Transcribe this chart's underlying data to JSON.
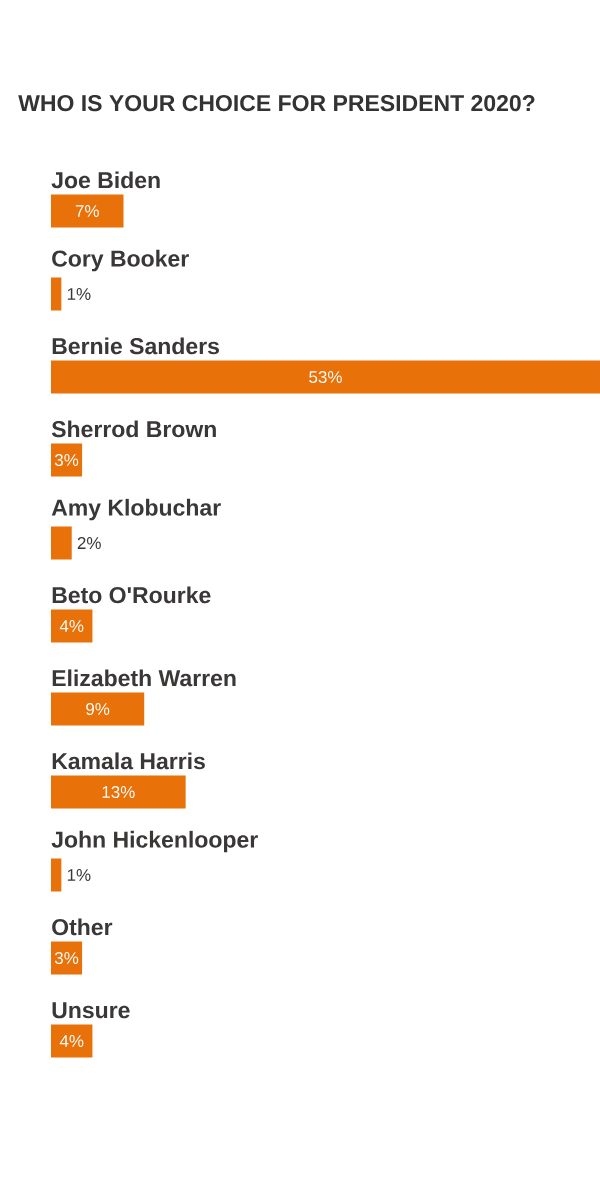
{
  "chart_data": {
    "type": "bar",
    "orientation": "horizontal",
    "title": "WHO IS YOUR CHOICE FOR PRESIDENT 2020?",
    "categories": [
      "Joe Biden",
      "Cory Booker",
      "Bernie Sanders",
      "Sherrod Brown",
      "Amy Klobuchar",
      "Beto O'Rourke",
      "Elizabeth Warren",
      "Kamala Harris",
      "John Hickenlooper",
      "Other",
      "Unsure"
    ],
    "values": [
      7,
      1,
      53,
      3,
      2,
      4,
      9,
      13,
      1,
      3,
      4
    ],
    "value_labels": [
      "7%",
      "1%",
      "53%",
      "3%",
      "2%",
      "4%",
      "9%",
      "13%",
      "1%",
      "3%",
      "4%"
    ],
    "color": "#e8710a",
    "tick_labels": "y"
  }
}
